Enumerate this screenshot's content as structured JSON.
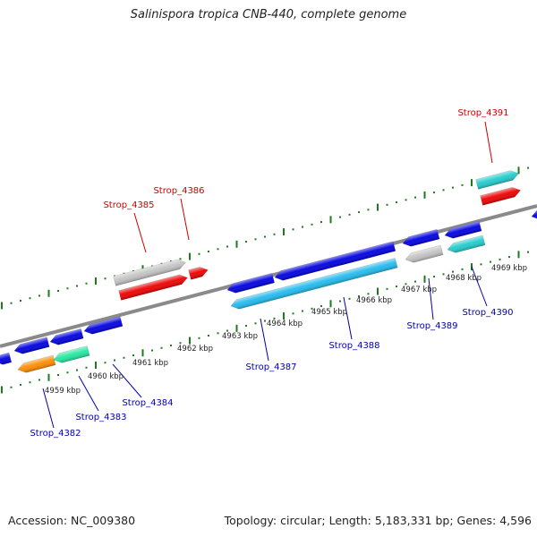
{
  "title": "Salinispora tropica CNB-440, complete genome",
  "footer": {
    "accession": "Accession: NC_009380",
    "summary": "Topology: circular; Length: 5,183,331 bp; Genes: 4,596"
  },
  "colors": {
    "backbone": "#8a8a8a",
    "ticks": "#1e7a1e",
    "label_forward": "#cc0000",
    "label_reverse": "#0000aa",
    "blue": "#0000e0",
    "red": "#ee0000",
    "gray": "#c4c4c4",
    "orange": "#ff8c00",
    "mint": "#22e8a0",
    "teal": "#22cccc",
    "cyan": "#22bbee"
  },
  "kbp_labels": [
    {
      "text": "4959 kbp"
    },
    {
      "text": "4960 kbp"
    },
    {
      "text": "4961 kbp"
    },
    {
      "text": "4962 kbp"
    },
    {
      "text": "4963 kbp"
    },
    {
      "text": "4964 kbp"
    },
    {
      "text": "4965 kbp"
    },
    {
      "text": "4966 kbp"
    },
    {
      "text": "4967 kbp"
    },
    {
      "text": "4968 kbp"
    },
    {
      "text": "4969 kbp"
    }
  ],
  "genes": [
    {
      "name": "Strop_4382",
      "strand": "reverse",
      "color": "orange"
    },
    {
      "name": "Strop_4383",
      "strand": "reverse",
      "color": "mint"
    },
    {
      "name": "Strop_4384",
      "strand": "reverse",
      "color": "blue"
    },
    {
      "name": "Strop_4385",
      "strand": "forward",
      "color": "gray"
    },
    {
      "name": "Strop_4386",
      "strand": "forward",
      "color": "red"
    },
    {
      "name": "Strop_4387",
      "strand": "reverse",
      "color": "blue"
    },
    {
      "name": "Strop_4388",
      "strand": "reverse",
      "color": "cyan"
    },
    {
      "name": "Strop_4389",
      "strand": "reverse",
      "color": "gray"
    },
    {
      "name": "Strop_4390",
      "strand": "reverse",
      "color": "teal"
    },
    {
      "name": "Strop_4391",
      "strand": "forward",
      "color": "teal"
    }
  ]
}
